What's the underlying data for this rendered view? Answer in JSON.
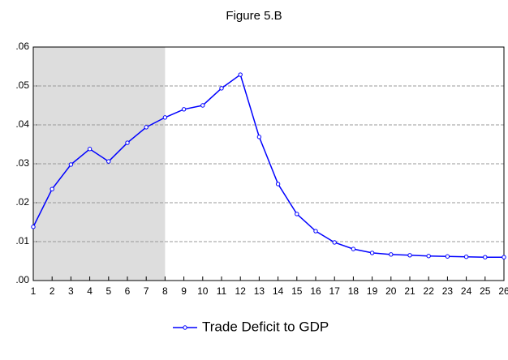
{
  "chart_data": {
    "type": "line",
    "title": "Figure 5.B",
    "x": [
      1,
      2,
      3,
      4,
      5,
      6,
      7,
      8,
      9,
      10,
      11,
      12,
      13,
      14,
      15,
      16,
      17,
      18,
      19,
      20,
      21,
      22,
      23,
      24,
      25,
      26
    ],
    "series": [
      {
        "name": "Trade Deficit to GDP",
        "color": "#0000ff",
        "values": [
          0.0138,
          0.0235,
          0.0298,
          0.0338,
          0.0306,
          0.0354,
          0.0394,
          0.0419,
          0.044,
          0.045,
          0.0494,
          0.0529,
          0.0369,
          0.0248,
          0.0171,
          0.0127,
          0.0098,
          0.0081,
          0.0071,
          0.0067,
          0.0065,
          0.0063,
          0.0062,
          0.0061,
          0.006,
          0.006
        ]
      }
    ],
    "xlim": [
      1,
      26
    ],
    "xticks": [
      1,
      2,
      3,
      4,
      5,
      6,
      7,
      8,
      9,
      10,
      11,
      12,
      13,
      14,
      15,
      16,
      17,
      18,
      19,
      20,
      21,
      22,
      23,
      24,
      25,
      26
    ],
    "ylim": [
      0,
      0.06
    ],
    "yticks": [
      {
        "value": 0,
        "label": ".00"
      },
      {
        "value": 0.01,
        "label": ".01"
      },
      {
        "value": 0.02,
        "label": ".02"
      },
      {
        "value": 0.03,
        "label": ".03"
      },
      {
        "value": 0.04,
        "label": ".04"
      },
      {
        "value": 0.05,
        "label": ".05"
      },
      {
        "value": 0.06,
        "label": ".06"
      }
    ],
    "shade": {
      "x": [
        1,
        8
      ],
      "color": "#dddddd"
    },
    "grid": true,
    "legend": "bottom"
  }
}
